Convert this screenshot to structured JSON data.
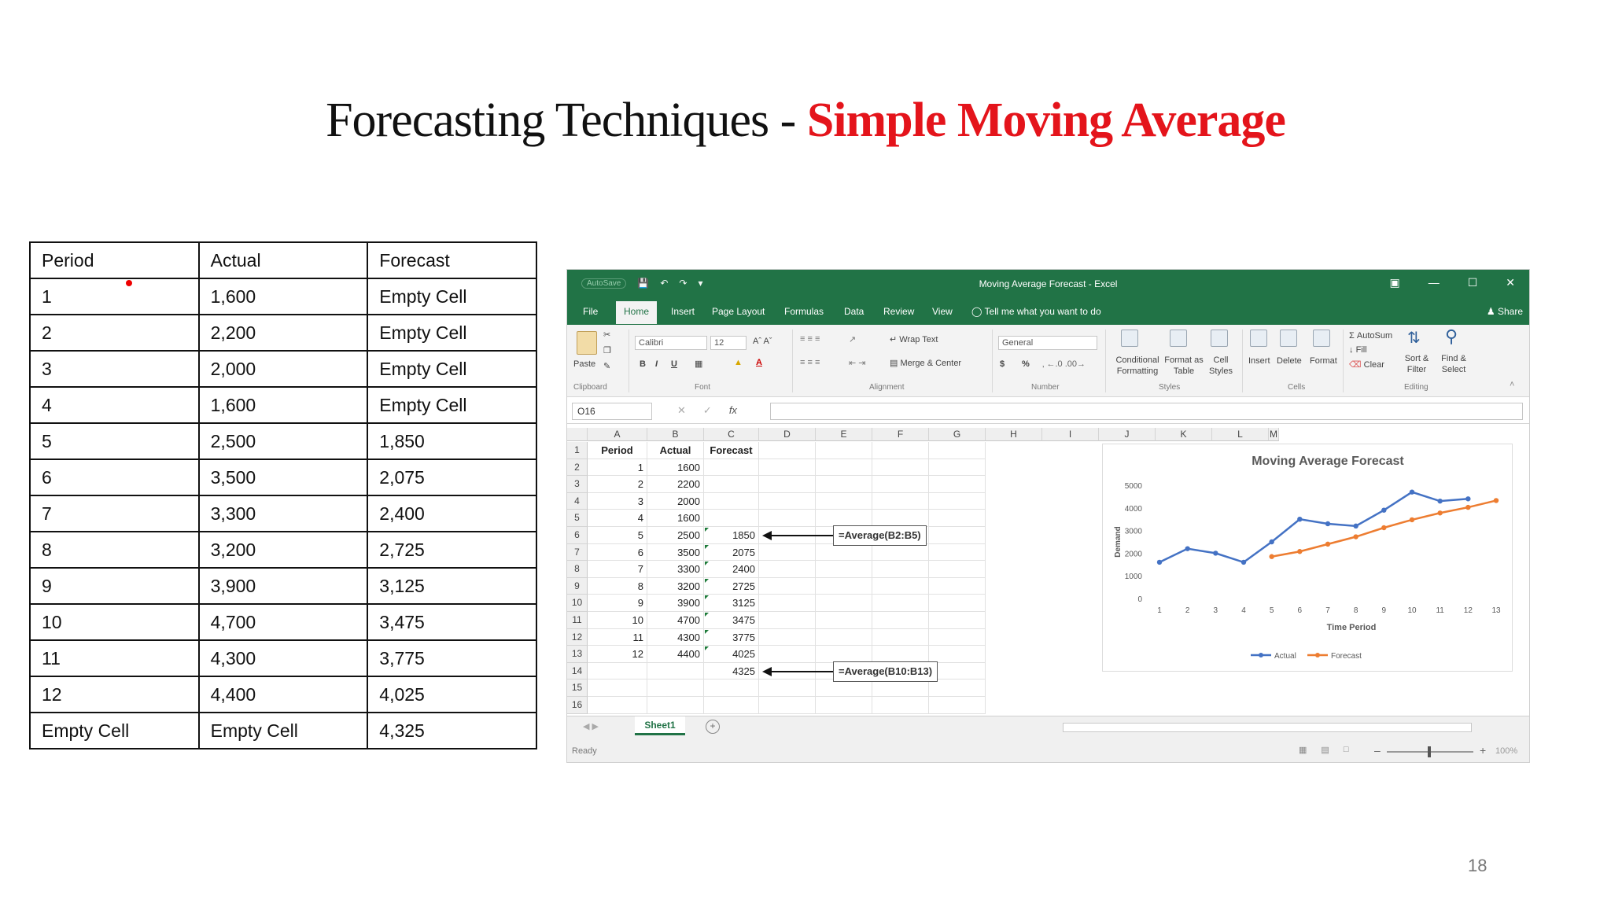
{
  "slide": {
    "title_main": "Forecasting Techniques - ",
    "title_accent": "Simple Moving Average",
    "page_number": "18"
  },
  "table": {
    "headers": [
      "Period",
      "Actual",
      "Forecast"
    ],
    "rows": [
      [
        "1",
        "1,600",
        "Empty Cell"
      ],
      [
        "2",
        "2,200",
        "Empty Cell"
      ],
      [
        "3",
        "2,000",
        "Empty Cell"
      ],
      [
        "4",
        "1,600",
        "Empty Cell"
      ],
      [
        "5",
        "2,500",
        "1,850"
      ],
      [
        "6",
        "3,500",
        "2,075"
      ],
      [
        "7",
        "3,300",
        "2,400"
      ],
      [
        "8",
        "3,200",
        "2,725"
      ],
      [
        "9",
        "3,900",
        "3,125"
      ],
      [
        "10",
        "4,700",
        "3,475"
      ],
      [
        "11",
        "4,300",
        "3,775"
      ],
      [
        "12",
        "4,400",
        "4,025"
      ],
      [
        "Empty Cell",
        "Empty Cell",
        "4,325"
      ]
    ]
  },
  "excel": {
    "window_title": "Moving Average Forecast - Excel",
    "autosave": "AutoSave",
    "window_controls": [
      "▣",
      "—",
      "☐",
      "✕"
    ],
    "tabs": [
      "File",
      "Home",
      "Insert",
      "Page Layout",
      "Formulas",
      "Data",
      "Review",
      "View"
    ],
    "active_tab": "Home",
    "tell_me": "Tell me what you want to do",
    "share": "Share",
    "ribbon": {
      "paste": "Paste",
      "font_name": "Calibri",
      "font_size": "12",
      "bold": "B",
      "italic": "I",
      "underline": "U",
      "wrap_text": "Wrap Text",
      "merge_center": "Merge & Center",
      "number_format": "General",
      "currency": "$",
      "percent": "%",
      "conditional_formatting": "Conditional Formatting",
      "format_as_table": "Format as Table",
      "cell_styles": "Cell Styles",
      "insert": "Insert",
      "delete": "Delete",
      "format": "Format",
      "autosum": "AutoSum",
      "fill": "Fill",
      "clear": "Clear",
      "sort_filter": "Sort & Filter",
      "find_select": "Find & Select",
      "groups": [
        "Clipboard",
        "Font",
        "Alignment",
        "Number",
        "Styles",
        "Cells",
        "Editing"
      ]
    },
    "name_box": "O16",
    "fx": "fx",
    "columns": [
      "A",
      "B",
      "C",
      "D",
      "E",
      "F",
      "G",
      "H",
      "I",
      "J",
      "K",
      "L",
      "M"
    ],
    "row_numbers": [
      "1",
      "2",
      "3",
      "4",
      "5",
      "6",
      "7",
      "8",
      "9",
      "10",
      "11",
      "12",
      "13",
      "14",
      "15",
      "16"
    ],
    "sheet_headers": [
      "Period",
      "Actual",
      "Forecast"
    ],
    "periods": [
      "1",
      "2",
      "3",
      "4",
      "5",
      "6",
      "7",
      "8",
      "9",
      "10",
      "11",
      "12"
    ],
    "actual_values": [
      "1600",
      "2200",
      "2000",
      "1600",
      "2500",
      "3500",
      "3300",
      "3200",
      "3900",
      "4700",
      "4300",
      "4400"
    ],
    "forecast_values": [
      "1850",
      "2075",
      "2400",
      "2725",
      "3125",
      "3475",
      "3775",
      "4025",
      "4325"
    ],
    "callout_1": "=Average(B2:B5)",
    "callout_2": "=Average(B10:B13)",
    "sheet_tab": "Sheet1",
    "status": "Ready",
    "zoom": "100%",
    "colors": {
      "excel_green": "#217346",
      "actual_series": "#4472c4",
      "forecast_series": "#ed7d31",
      "title_accent": "#e4141b"
    }
  },
  "chart_data": {
    "type": "line",
    "title": "Moving Average Forecast",
    "xlabel": "Time Period",
    "ylabel": "Demand",
    "x": [
      1,
      2,
      3,
      4,
      5,
      6,
      7,
      8,
      9,
      10,
      11,
      12,
      13
    ],
    "xlim": [
      1,
      13
    ],
    "ylim": [
      0,
      5000
    ],
    "yticks": [
      0,
      1000,
      2000,
      3000,
      4000,
      5000
    ],
    "grid": false,
    "legend_position": "bottom",
    "series": [
      {
        "name": "Actual",
        "color": "#4472c4",
        "values": [
          1600,
          2200,
          2000,
          1600,
          2500,
          3500,
          3300,
          3200,
          3900,
          4700,
          4300,
          4400,
          null
        ]
      },
      {
        "name": "Forecast",
        "color": "#ed7d31",
        "values": [
          null,
          null,
          null,
          null,
          1850,
          2075,
          2400,
          2725,
          3125,
          3475,
          3775,
          4025,
          4325
        ]
      }
    ]
  }
}
